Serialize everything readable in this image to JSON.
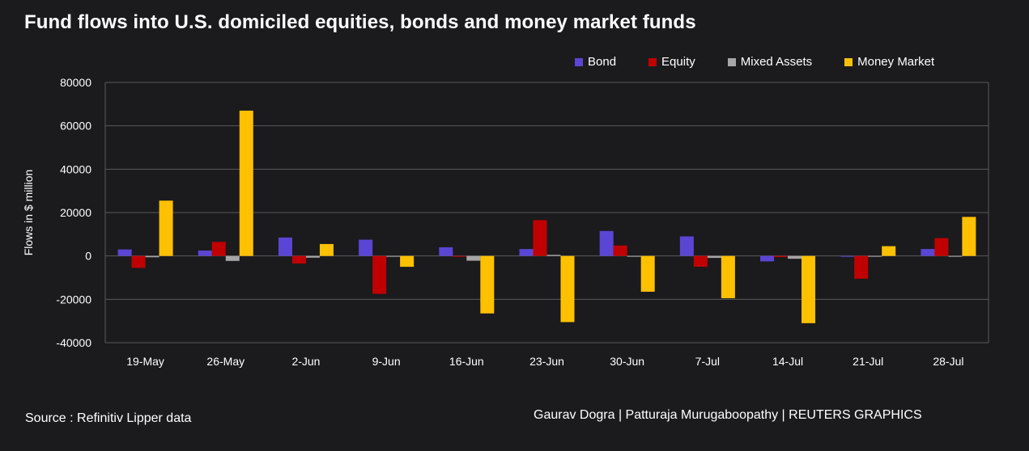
{
  "title": "Fund flows into U.S. domiciled equities, bonds and money market funds",
  "source": "Source : Refinitiv Lipper data",
  "credit": "Gaurav Dogra | Patturaja Murugaboopathy | REUTERS GRAPHICS",
  "chart_data": {
    "type": "bar",
    "title": "Fund flows into U.S. domiciled equities, bonds and money market funds",
    "xlabel": "",
    "ylabel": "Flows in $ million",
    "ylim": [
      -40000,
      80000
    ],
    "yticks": [
      80000,
      60000,
      40000,
      20000,
      0,
      -20000,
      -40000
    ],
    "grid": true,
    "legend_position": "top-right",
    "categories": [
      "19-May",
      "26-May",
      "2-Jun",
      "9-Jun",
      "16-Jun",
      "23-Jun",
      "30-Jun",
      "7-Jul",
      "14-Jul",
      "21-Jul",
      "28-Jul"
    ],
    "series": [
      {
        "name": "Bond",
        "color": "#5b45d4",
        "values": [
          3000,
          2500,
          8500,
          7500,
          4000,
          3200,
          11500,
          9000,
          -2500,
          -300,
          3200
        ]
      },
      {
        "name": "Equity",
        "color": "#c00000",
        "values": [
          -5500,
          6500,
          -3500,
          -17500,
          -300,
          16500,
          4800,
          -5000,
          -500,
          -10500,
          8200
        ]
      },
      {
        "name": "Mixed Assets",
        "color": "#a6a6a6",
        "values": [
          -600,
          -2300,
          -800,
          -200,
          -2200,
          500,
          -200,
          -900,
          -1300,
          -300,
          -200
        ]
      },
      {
        "name": "Money Market",
        "color": "#ffc000",
        "values": [
          25500,
          67000,
          5500,
          -5000,
          -26500,
          -30500,
          -16500,
          -19500,
          -31000,
          4500,
          18000
        ]
      }
    ]
  }
}
